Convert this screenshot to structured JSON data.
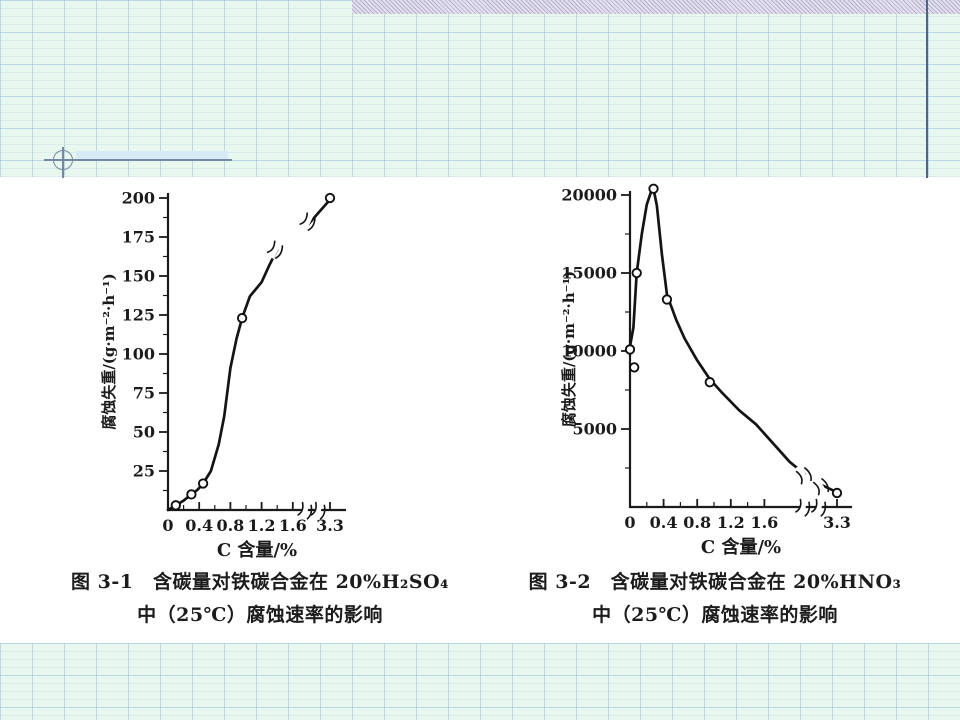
{
  "slide": {
    "background_color": "#e9f8ee",
    "grid_line_color": "#8cb9e1",
    "accent_strip_color": "#c3bdd9",
    "right_edge_line_color": "#4f6385",
    "decoration_color": "#7388a5",
    "content_background": "#ffffff"
  },
  "figures": [
    {
      "caption_line1": "图 3-1　含碳量对铁碳合金在 20%H₂SO₄",
      "caption_line2": "中（25℃）腐蚀速率的影响"
    },
    {
      "caption_line1": "图 3-2　含碳量对铁碳合金在 20%HNO₃",
      "caption_line2": "中（25℃）腐蚀速率的影响"
    }
  ],
  "chart_data": [
    {
      "type": "line",
      "title": "图 3-1 含碳量对铁碳合金在 20%H₂SO₄ 中（25℃）腐蚀速率的影响",
      "xlabel": "C 含量/%",
      "ylabel": "腐蚀失重/(g·m⁻²·h⁻¹)",
      "ylim": [
        0,
        210
      ],
      "x_axis_note": "axis broken between 1.6 and 3.3",
      "x_ticks": {
        "values": [
          0,
          0.4,
          0.8,
          1.2,
          1.6,
          3.3
        ],
        "labels": [
          "0",
          "0.4",
          "0.8",
          "1.2",
          "1.6",
          "3.3"
        ]
      },
      "y_ticks": {
        "values": [
          25,
          50,
          75,
          100,
          125,
          150,
          175,
          200
        ],
        "labels": [
          "25",
          "50",
          "75",
          "100",
          "125",
          "150",
          "175",
          "200"
        ]
      },
      "series": [
        {
          "name": "铁碳合金 20%H₂SO₄ (25℃)",
          "points": [
            [
              0.1,
              3
            ],
            [
              0.3,
              10
            ],
            [
              0.45,
              17
            ],
            [
              0.95,
              123
            ],
            [
              3.3,
              200
            ]
          ]
        }
      ],
      "curve_segments": [
        [
          [
            0,
            0
          ],
          [
            0.1,
            3
          ],
          [
            0.2,
            6
          ],
          [
            0.3,
            10
          ],
          [
            0.38,
            13
          ],
          [
            0.45,
            17
          ],
          [
            0.55,
            25
          ],
          [
            0.65,
            42
          ],
          [
            0.72,
            60
          ],
          [
            0.8,
            91
          ],
          [
            0.88,
            110
          ],
          [
            0.95,
            123
          ],
          [
            1.05,
            137
          ],
          [
            1.2,
            146
          ],
          [
            1.3,
            157
          ],
          [
            1.4,
            167
          ]
        ],
        [
          [
            3.02,
            183
          ],
          [
            3.3,
            199
          ]
        ]
      ],
      "curve_breaks": [
        {
          "x": 1.4,
          "y": 167,
          "angle": 25
        },
        {
          "x": 3.04,
          "y": 185,
          "angle": 25
        }
      ],
      "x_axis_breaks": [
        1.78,
        1.95
      ]
    },
    {
      "type": "line",
      "title": "图 3-2 含碳量对铁碳合金在 20%HNO₃ 中（25℃）腐蚀速率的影响",
      "xlabel": "C 含量/%",
      "ylabel": "腐蚀失重/(g·m⁻²·h⁻¹)",
      "ylim": [
        0,
        21000
      ],
      "x_axis_note": "axis broken between 1.6 and 3.3",
      "x_ticks": {
        "values": [
          0,
          0.4,
          0.8,
          1.2,
          1.6,
          3.3
        ],
        "labels": [
          "0",
          "0.4",
          "0.8",
          "1.2",
          "1.6",
          "3.3"
        ]
      },
      "y_ticks": {
        "values": [
          5000,
          10000,
          15000,
          20000
        ],
        "labels": [
          "5000",
          "10000",
          "15000",
          "20000"
        ]
      },
      "series": [
        {
          "name": "铁碳合金 20%HNO₃ (25℃)",
          "points": [
            [
              0,
              10100
            ],
            [
              0.05,
              8950
            ],
            [
              0.08,
              15000
            ],
            [
              0.28,
              20400
            ],
            [
              0.44,
              13300
            ],
            [
              0.95,
              8000
            ],
            [
              3.3,
              900
            ]
          ]
        }
      ],
      "curve_segments": [
        [
          [
            0,
            10300
          ],
          [
            0.04,
            11500
          ],
          [
            0.08,
            15000
          ],
          [
            0.14,
            17500
          ],
          [
            0.2,
            19400
          ],
          [
            0.25,
            20200
          ],
          [
            0.28,
            20400
          ],
          [
            0.32,
            19300
          ],
          [
            0.38,
            16200
          ],
          [
            0.44,
            13600
          ],
          [
            0.55,
            12000
          ],
          [
            0.65,
            10800
          ],
          [
            0.8,
            9400
          ],
          [
            0.95,
            8200
          ],
          [
            1.1,
            7300
          ],
          [
            1.3,
            6200
          ],
          [
            1.5,
            5300
          ],
          [
            1.6,
            4700
          ],
          [
            1.9,
            2900
          ],
          [
            2.08,
            2100
          ]
        ],
        [
          [
            3.12,
            1400
          ],
          [
            3.3,
            950
          ]
        ]
      ],
      "curve_breaks": [
        {
          "x": 2.08,
          "y": 2100,
          "angle": -30
        },
        {
          "x": 3.12,
          "y": 1400,
          "angle": -30
        }
      ],
      "x_axis_breaks": [
        2.08,
        2.27
      ]
    }
  ]
}
